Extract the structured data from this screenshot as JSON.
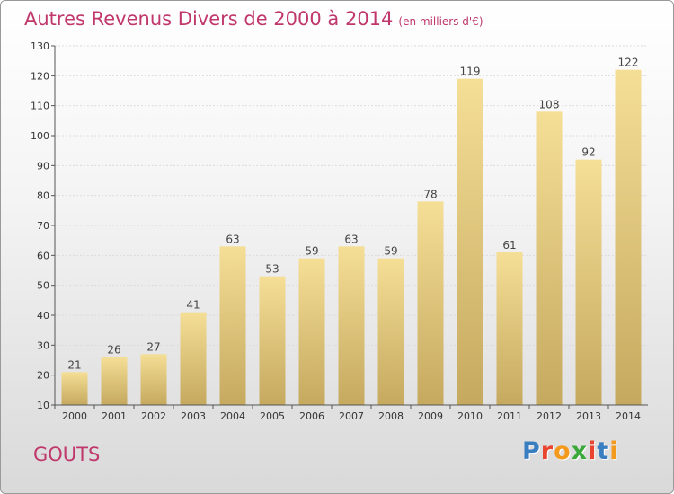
{
  "header": {
    "title": "Autres Revenus Divers de 2000 à 2014",
    "subtitle": "(en milliers d'€)"
  },
  "footer": {
    "place": "GOUTS",
    "logo_text": "Proxiti",
    "logo_colors": [
      "#3a7ec2",
      "#e8442e",
      "#f39a1e",
      "#3aa83a",
      "#e8442e",
      "#3a7ec2",
      "#f39a1e"
    ]
  },
  "colors": {
    "bar_top": "#f5de96",
    "bar_bottom": "#c5a95f",
    "title": "#c0376b"
  },
  "chart_data": {
    "type": "bar",
    "categories": [
      "2000",
      "2001",
      "2002",
      "2003",
      "2004",
      "2005",
      "2006",
      "2007",
      "2008",
      "2009",
      "2010",
      "2011",
      "2012",
      "2013",
      "2014"
    ],
    "values": [
      21,
      26,
      27,
      41,
      63,
      53,
      59,
      63,
      59,
      78,
      119,
      61,
      108,
      92,
      122
    ],
    "title": "Autres Revenus Divers de 2000 à 2014",
    "subtitle": "(en milliers d'€)",
    "ylim": [
      10,
      130
    ],
    "yticks": [
      10,
      20,
      30,
      40,
      50,
      60,
      70,
      80,
      90,
      100,
      110,
      120,
      130
    ],
    "grid": true
  }
}
